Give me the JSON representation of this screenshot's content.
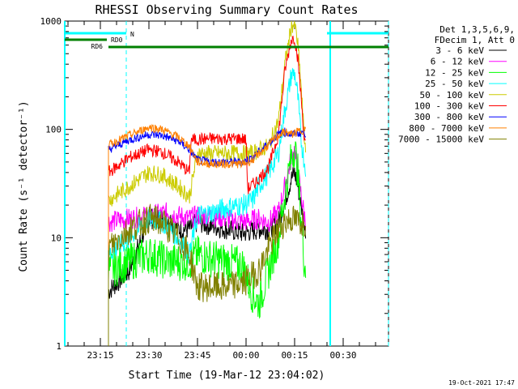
{
  "chart_data": {
    "type": "line",
    "title": "RHESSI Observing Summary Count Rates",
    "xlabel": "Start Time (19-Mar-12 23:04:02)",
    "ylabel": "Count Rate (s⁻¹ detector⁻¹)",
    "x_ticks": [
      "23:15",
      "23:30",
      "23:45",
      "00:00",
      "00:15",
      "00:30"
    ],
    "x_tick_minutes": [
      11,
      26,
      41,
      56,
      71,
      86
    ],
    "x_minute_range": [
      0,
      100
    ],
    "y_scale": "log",
    "ylim": [
      1,
      1000
    ],
    "y_tick_labels": [
      "1",
      "10",
      "100",
      "1000"
    ],
    "y_tick_values": [
      1,
      10,
      100,
      1000
    ],
    "legend_header": [
      "Det 1,3,5,6,9,",
      "FDecim 1, Att 0"
    ],
    "series": [
      {
        "name": "3 - 6 keV",
        "color": "#000000",
        "points": [
          [
            13.5,
            3.2
          ],
          [
            20,
            5
          ],
          [
            26,
            15
          ],
          [
            32,
            15
          ],
          [
            35,
            12
          ],
          [
            38.5,
            12
          ],
          [
            41,
            14
          ],
          [
            45,
            13
          ],
          [
            50,
            12
          ],
          [
            55,
            11
          ],
          [
            60,
            12
          ],
          [
            63,
            12
          ],
          [
            66,
            14
          ],
          [
            68,
            22
          ],
          [
            70,
            35
          ],
          [
            71,
            40
          ],
          [
            72,
            30
          ],
          [
            73,
            20
          ],
          [
            74,
            14
          ],
          [
            74.5,
            12
          ]
        ]
      },
      {
        "name": "6 - 12 keV",
        "color": "#ff00ff",
        "points": [
          [
            13.5,
            14
          ],
          [
            20,
            15
          ],
          [
            26,
            16
          ],
          [
            32,
            17
          ],
          [
            35,
            16
          ],
          [
            38.5,
            15
          ],
          [
            41,
            16
          ],
          [
            45,
            16
          ],
          [
            50,
            15
          ],
          [
            55,
            14
          ],
          [
            60,
            15
          ],
          [
            63,
            14
          ],
          [
            66,
            17
          ],
          [
            68,
            30
          ],
          [
            70,
            55
          ],
          [
            71,
            65
          ],
          [
            72,
            40
          ],
          [
            73,
            25
          ],
          [
            74,
            16
          ],
          [
            74.5,
            14
          ]
        ]
      },
      {
        "name": "12 - 25 keV",
        "color": "#00ff00",
        "points": [
          [
            13.5,
            5
          ],
          [
            20,
            6
          ],
          [
            26,
            7
          ],
          [
            32,
            6
          ],
          [
            35,
            6
          ],
          [
            38.5,
            6
          ],
          [
            41,
            7
          ],
          [
            45,
            6.5
          ],
          [
            50,
            6
          ],
          [
            55,
            5.5
          ],
          [
            58,
            3
          ],
          [
            60,
            2.5
          ],
          [
            63,
            5
          ],
          [
            66,
            10
          ],
          [
            68,
            25
          ],
          [
            70,
            55
          ],
          [
            71,
            70
          ],
          [
            72,
            40
          ],
          [
            73,
            15
          ],
          [
            74,
            6
          ],
          [
            74.5,
            5
          ]
        ]
      },
      {
        "name": "25 - 50 keV",
        "color": "#00ffff",
        "points": [
          [
            13.5,
            7
          ],
          [
            20,
            10
          ],
          [
            26,
            15
          ],
          [
            30,
            14
          ],
          [
            35,
            10
          ],
          [
            38.5,
            7
          ],
          [
            41,
            16
          ],
          [
            45,
            17
          ],
          [
            50,
            19
          ],
          [
            55,
            20
          ],
          [
            58,
            22
          ],
          [
            60,
            30
          ],
          [
            63,
            40
          ],
          [
            66,
            60
          ],
          [
            68,
            150
          ],
          [
            70,
            320
          ],
          [
            71,
            330
          ],
          [
            72,
            200
          ],
          [
            73,
            80
          ],
          [
            74,
            50
          ],
          [
            74.5,
            45
          ]
        ]
      },
      {
        "name": "50 - 100 keV",
        "color": "#cccc00",
        "points": [
          [
            13.5,
            22
          ],
          [
            20,
            30
          ],
          [
            26,
            40
          ],
          [
            30,
            38
          ],
          [
            35,
            30
          ],
          [
            38.5,
            24
          ],
          [
            41,
            60
          ],
          [
            45,
            60
          ],
          [
            50,
            60
          ],
          [
            55,
            60
          ],
          [
            56,
            60
          ],
          [
            58,
            60
          ],
          [
            60,
            65
          ],
          [
            63,
            70
          ],
          [
            66,
            120
          ],
          [
            68,
            400
          ],
          [
            70,
            900
          ],
          [
            71,
            950
          ],
          [
            72,
            600
          ],
          [
            73,
            250
          ],
          [
            74,
            80
          ],
          [
            74.5,
            70
          ]
        ]
      },
      {
        "name": "100 - 300 keV",
        "color": "#ff0000",
        "points": [
          [
            13.5,
            40
          ],
          [
            20,
            55
          ],
          [
            26,
            65
          ],
          [
            30,
            62
          ],
          [
            35,
            50
          ],
          [
            38.5,
            40
          ],
          [
            39,
            80
          ],
          [
            45,
            82
          ],
          [
            50,
            82
          ],
          [
            55,
            82
          ],
          [
            56,
            80
          ],
          [
            56.5,
            28
          ],
          [
            60,
            35
          ],
          [
            63,
            45
          ],
          [
            66,
            90
          ],
          [
            68,
            350
          ],
          [
            70,
            680
          ],
          [
            71,
            700
          ],
          [
            72,
            450
          ],
          [
            73,
            200
          ],
          [
            74,
            80
          ],
          [
            74.5,
            70
          ]
        ]
      },
      {
        "name": "300 - 800 keV",
        "color": "#0000ff",
        "points": [
          [
            13.5,
            65
          ],
          [
            20,
            80
          ],
          [
            26,
            90
          ],
          [
            30,
            88
          ],
          [
            35,
            78
          ],
          [
            38.5,
            65
          ],
          [
            41,
            52
          ],
          [
            45,
            50
          ],
          [
            50,
            50
          ],
          [
            55,
            50
          ],
          [
            58,
            55
          ],
          [
            60,
            62
          ],
          [
            63,
            75
          ],
          [
            66,
            90
          ],
          [
            68,
            95
          ],
          [
            70,
            90
          ],
          [
            72,
            92
          ],
          [
            74,
            95
          ],
          [
            74.5,
            90
          ]
        ]
      },
      {
        "name": "800 - 7000 keV",
        "color": "#ff8000",
        "points": [
          [
            13.5,
            72
          ],
          [
            20,
            88
          ],
          [
            26,
            105
          ],
          [
            30,
            100
          ],
          [
            35,
            85
          ],
          [
            38.5,
            70
          ],
          [
            41,
            50
          ],
          [
            45,
            48
          ],
          [
            50,
            48
          ],
          [
            55,
            48
          ],
          [
            58,
            52
          ],
          [
            60,
            60
          ],
          [
            63,
            72
          ],
          [
            66,
            88
          ],
          [
            68,
            95
          ],
          [
            70,
            90
          ],
          [
            72,
            95
          ],
          [
            74,
            100
          ],
          [
            74.5,
            95
          ]
        ]
      },
      {
        "name": "7000 - 15000 keV",
        "color": "#808000",
        "points": [
          [
            13.5,
            8
          ],
          [
            20,
            12
          ],
          [
            26,
            15
          ],
          [
            30,
            14
          ],
          [
            35,
            10
          ],
          [
            38.5,
            7
          ],
          [
            41,
            3.5
          ],
          [
            45,
            3.5
          ],
          [
            50,
            3.5
          ],
          [
            55,
            3.8
          ],
          [
            58,
            4.5
          ],
          [
            60,
            5
          ],
          [
            63,
            8
          ],
          [
            66,
            12
          ],
          [
            68,
            14
          ],
          [
            70,
            15
          ],
          [
            72,
            14
          ],
          [
            74,
            14
          ],
          [
            74.5,
            14
          ]
        ]
      }
    ],
    "state_bars": [
      {
        "label": "N",
        "color": "#00ffff",
        "segments": [
          [
            0,
            19
          ],
          [
            81,
            100
          ]
        ]
      },
      {
        "label": "RD0",
        "color": "#008000",
        "segments": [
          [
            0,
            13
          ]
        ]
      },
      {
        "label": "RD6",
        "color": "#008000",
        "segments": [
          [
            13.5,
            39.5
          ],
          [
            39.5,
            58
          ],
          [
            58,
            84
          ],
          [
            84,
            100
          ]
        ]
      }
    ],
    "eclipse_lines_solid": [
      0,
      82
    ],
    "eclipse_lines_dashed": [
      19,
      100
    ],
    "data_span_minutes": [
      13.5,
      74.5
    ]
  },
  "timestamp": "19-Oct-2021 17:47"
}
